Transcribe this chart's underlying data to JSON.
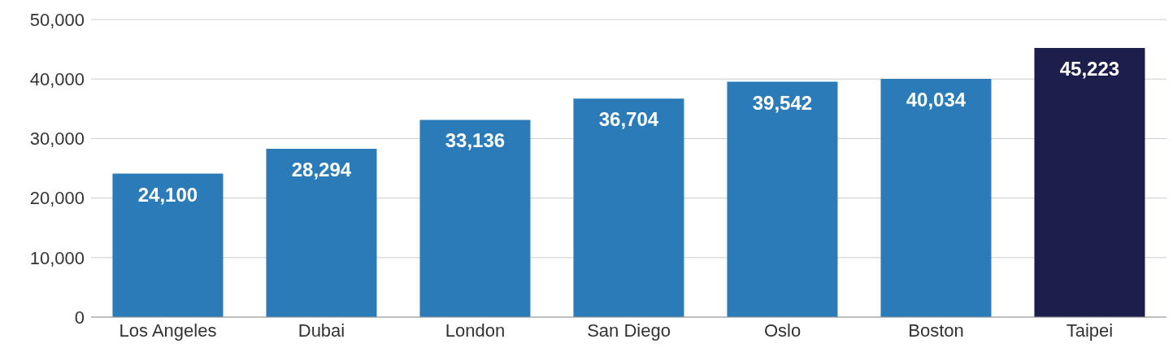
{
  "chart_data": {
    "type": "bar",
    "categories": [
      "Los Angeles",
      "Dubai",
      "London",
      "San Diego",
      "Oslo",
      "Boston",
      "Taipei"
    ],
    "values": [
      24100,
      28294,
      33136,
      36704,
      39542,
      40034,
      45223
    ],
    "colors": [
      "#2b7bb9",
      "#2b7bb9",
      "#2b7bb9",
      "#2b7bb9",
      "#2b7bb9",
      "#2b7bb9",
      "#1c1e4b"
    ],
    "value_labels": [
      "24,100",
      "28,294",
      "33,136",
      "36,704",
      "39,542",
      "40,034",
      "45,223"
    ],
    "ylim": [
      0,
      50000
    ],
    "yticks": [
      {
        "value": 0,
        "label": "0"
      },
      {
        "value": 10000,
        "label": "10,000"
      },
      {
        "value": 20000,
        "label": "20,000"
      },
      {
        "value": 30000,
        "label": "30,000"
      },
      {
        "value": 40000,
        "label": "40,000"
      },
      {
        "value": 50000,
        "label": "50,000"
      }
    ],
    "grid": "y",
    "legend": false
  }
}
